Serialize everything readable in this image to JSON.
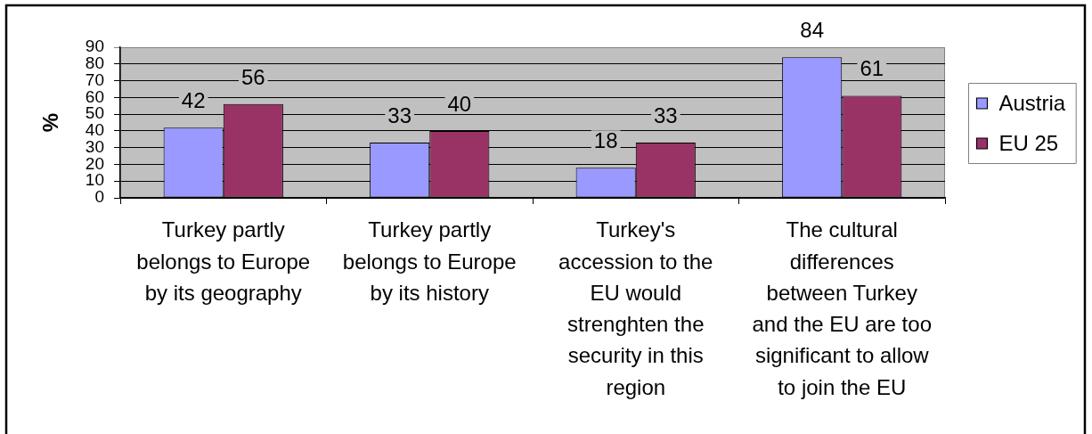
{
  "chart_data": {
    "type": "bar",
    "categories": [
      "Turkey partly\nbelongs to Europe\nby its geography",
      "Turkey partly\nbelongs to Europe\nby its history",
      "Turkey's\naccession to the\nEU would\nstrenghten the\nsecurity in this\nregion",
      "The cultural\ndifferences\nbetween Turkey\nand the EU are too\nsignificant to allow\nto join the EU"
    ],
    "ylabel": "%",
    "series": [
      {
        "name": "Austria",
        "color": "#9999ff",
        "values": [
          42,
          33,
          18,
          84
        ]
      },
      {
        "name": "EU 25",
        "color": "#993366",
        "values": [
          56,
          40,
          33,
          61
        ]
      }
    ],
    "ylim": [
      0,
      90
    ],
    "yticks": [
      0,
      10,
      20,
      30,
      40,
      50,
      60,
      70,
      80,
      90
    ],
    "grid": "y",
    "legend": "right",
    "data_labels": true
  }
}
